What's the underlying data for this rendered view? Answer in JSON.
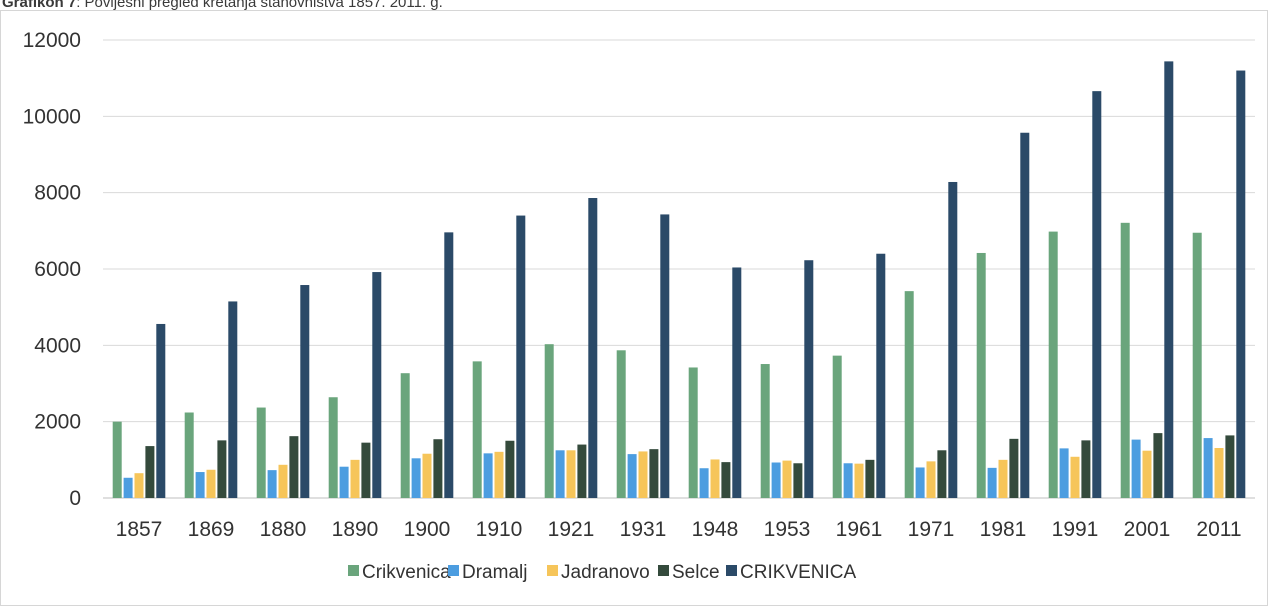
{
  "caption": {
    "label": "Grafikon 7",
    "text": ": Povijesni pregled kretanja stanovništva 1857. 2011. g."
  },
  "chart_data": {
    "type": "bar",
    "title": "",
    "xlabel": "",
    "ylabel": "",
    "ylim": [
      0,
      12000
    ],
    "yticks": [
      0,
      2000,
      4000,
      6000,
      8000,
      10000,
      12000
    ],
    "grid": true,
    "legend_position": "bottom",
    "categories": [
      "1857",
      "1869",
      "1880",
      "1890",
      "1900",
      "1910",
      "1921",
      "1931",
      "1948",
      "1953",
      "1961",
      "1971",
      "1981",
      "1991",
      "2001",
      "2011"
    ],
    "series": [
      {
        "name": "Crikvenica",
        "color": "#6aa57c",
        "values": [
          2000,
          2240,
          2370,
          2640,
          3270,
          3580,
          4030,
          3870,
          3420,
          3510,
          3730,
          5420,
          6420,
          6980,
          7210,
          6950
        ]
      },
      {
        "name": "Dramalj",
        "color": "#4c9de0",
        "values": [
          530,
          680,
          730,
          820,
          1040,
          1170,
          1250,
          1150,
          780,
          930,
          910,
          800,
          790,
          1300,
          1530,
          1570
        ]
      },
      {
        "name": "Jadranovo",
        "color": "#f6c55a",
        "values": [
          650,
          740,
          870,
          1000,
          1160,
          1210,
          1250,
          1220,
          1010,
          980,
          900,
          960,
          1000,
          1080,
          1240,
          1310
        ]
      },
      {
        "name": "Selce",
        "color": "#344a3c",
        "values": [
          1360,
          1510,
          1620,
          1450,
          1540,
          1500,
          1400,
          1280,
          940,
          910,
          1000,
          1250,
          1550,
          1510,
          1700,
          1640
        ]
      },
      {
        "name": "CRIKVENICA",
        "color": "#2b4a68",
        "values": [
          4560,
          5150,
          5580,
          5920,
          6960,
          7400,
          7860,
          7430,
          6040,
          6230,
          6400,
          8280,
          9570,
          10660,
          11440,
          11200
        ]
      }
    ]
  }
}
